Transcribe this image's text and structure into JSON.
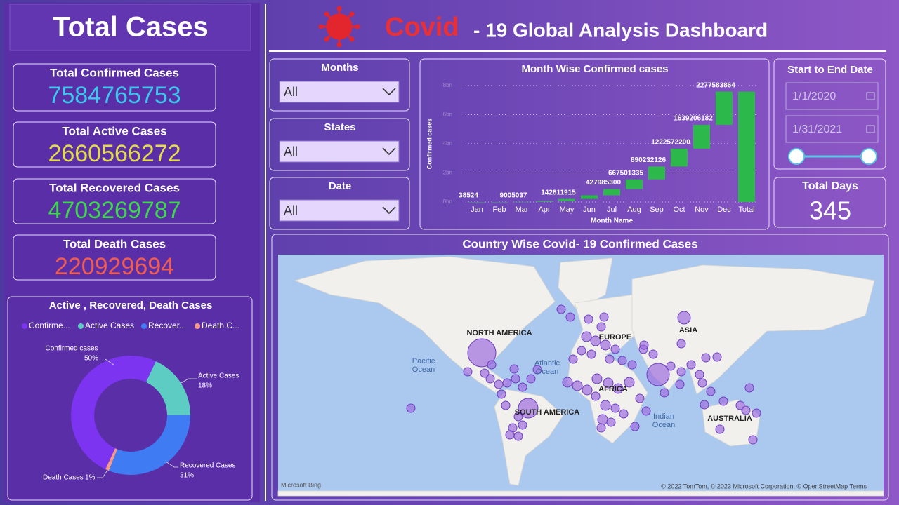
{
  "header": {
    "left_title": "Total Cases",
    "title_highlight": "Covid",
    "title_rest": "- 19 Global Analysis Dashboard"
  },
  "kpis": [
    {
      "label": "Total Confirmed Cases",
      "value": 7584765753,
      "color": "#3cc8ec"
    },
    {
      "label": "Total Active Cases",
      "value": 2660566272,
      "color": "#e4dc46"
    },
    {
      "label": "Total Recovered Cases",
      "value": 4703269787,
      "color": "#3ed84c"
    },
    {
      "label": "Total Death Cases",
      "value": 220929694,
      "color": "#ee5c52"
    }
  ],
  "filters": [
    {
      "label": "Months",
      "value": "All"
    },
    {
      "label": "States",
      "value": "All"
    },
    {
      "label": "Date",
      "value": "All"
    }
  ],
  "date_range": {
    "title": "Start to End Date",
    "start": "1/1/2020",
    "end": "1/31/2021"
  },
  "total_days": {
    "label": "Total Days",
    "value": 345
  },
  "waterfall": {
    "type": "waterfall",
    "title": "Month Wise Confirmed cases",
    "ylabel": "Confirmed cases",
    "xlabel": "Month Name",
    "categories": [
      "Jan",
      "Feb",
      "Mar",
      "Apr",
      "May",
      "Jun",
      "Jul",
      "Aug",
      "Sep",
      "Oct",
      "Nov",
      "Dec"
    ],
    "values": [
      38524,
      2000000,
      9005037,
      55000000,
      142811915,
      250000000,
      427985300,
      667501335,
      890232126,
      1222572200,
      1639206182,
      2277583864
    ],
    "show_label": [
      true,
      false,
      true,
      false,
      true,
      false,
      true,
      true,
      true,
      true,
      true,
      true
    ],
    "total_label": "Total",
    "total": 7584765753,
    "color": "#2cb84a",
    "ylim": [
      0,
      8000000000
    ],
    "yticks": [
      {
        "value": 0,
        "label": "0bn"
      },
      {
        "value": 2000000000,
        "label": "2bn"
      },
      {
        "value": 4000000000,
        "label": "4bn"
      },
      {
        "value": 6000000000,
        "label": "6bn"
      },
      {
        "value": 8000000000,
        "label": "8bn"
      }
    ],
    "grid": true
  },
  "donut": {
    "type": "donut",
    "title": "Active , Recovered, Death Cases",
    "legend_labels": [
      "Confirme...",
      "Active Cases",
      "Recover...",
      "Death C..."
    ],
    "series": [
      {
        "name": "Confirmed cases",
        "color": "#7c34f0",
        "value": 50,
        "value_label": "50%"
      },
      {
        "name": "Active Cases",
        "color": "#5dcdc4",
        "value": 18,
        "value_label": "18%"
      },
      {
        "name": "Recovered Cases",
        "color": "#3f7cf4",
        "value": 31,
        "value_label": "31%"
      },
      {
        "name": "Death Cases",
        "color": "#f49a8c",
        "value": 1,
        "value_label": "1%"
      }
    ]
  },
  "map": {
    "title": "Country Wise Covid- 19 Confirmed Cases",
    "regions": [
      "NORTH AMERICA",
      "EUROPE",
      "ASIA",
      "AFRICA",
      "SOUTH AMERICA",
      "AUSTRALIA"
    ],
    "oceans": [
      [
        "Pacific",
        "Ocean"
      ],
      [
        "Atlantic",
        "Ocean"
      ],
      [
        "Indian",
        "Ocean"
      ]
    ],
    "brand": "Microsoft Bing",
    "attribution": "© 2022 TomTom, © 2023 Microsoft Corporation, © OpenStreetMap  Terms"
  }
}
